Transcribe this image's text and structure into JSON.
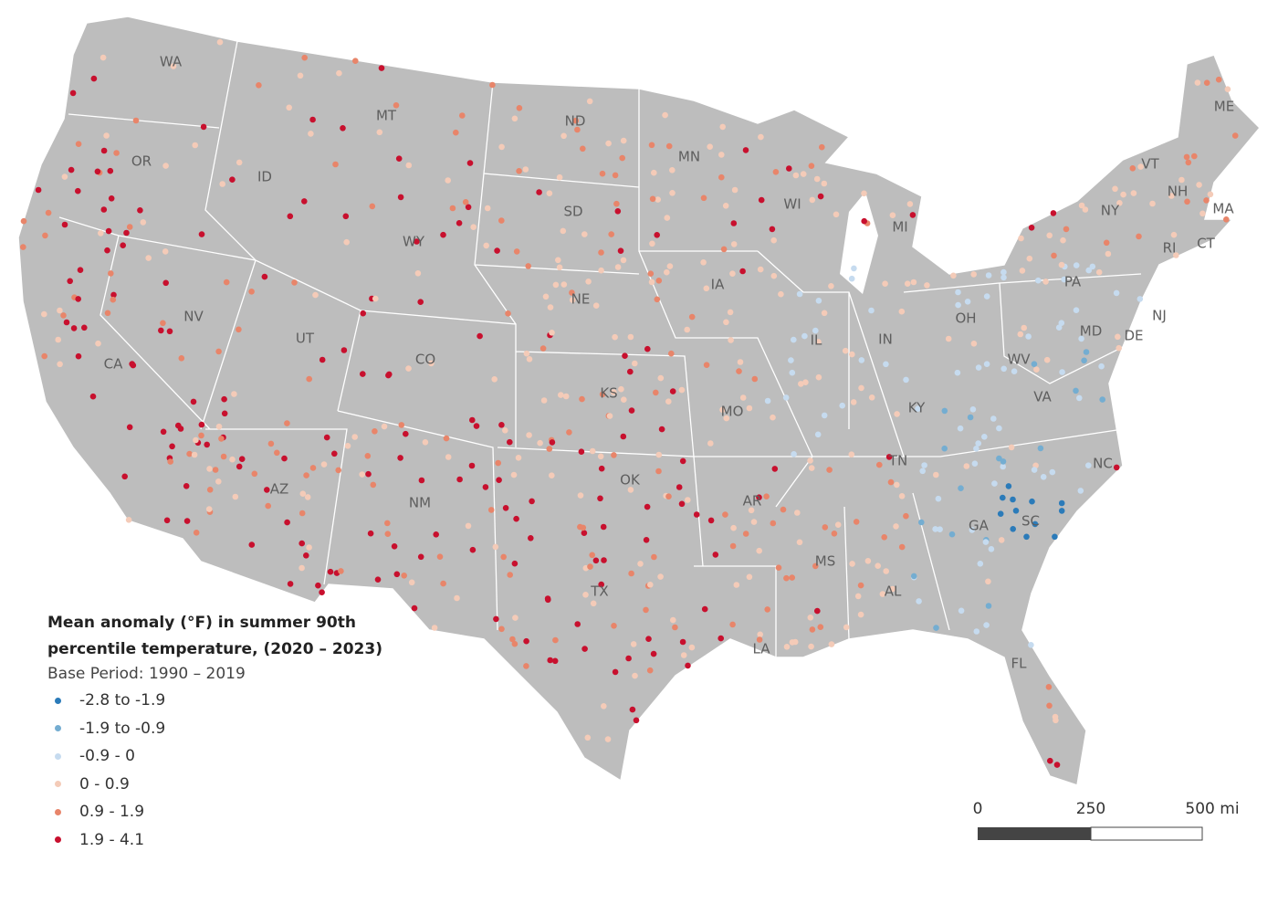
{
  "map": {
    "states": [
      "WA",
      "OR",
      "CA",
      "ID",
      "NV",
      "MT",
      "WY",
      "UT",
      "AZ",
      "CO",
      "NM",
      "ND",
      "SD",
      "NE",
      "KS",
      "OK",
      "TX",
      "MN",
      "IA",
      "MO",
      "AR",
      "LA",
      "WI",
      "IL",
      "MS",
      "MI",
      "IN",
      "KY",
      "TN",
      "AL",
      "OH",
      "GA",
      "FL",
      "WV",
      "VA",
      "NC",
      "SC",
      "PA",
      "NY",
      "MD",
      "DE",
      "NJ",
      "VT",
      "NH",
      "ME",
      "MA",
      "CT",
      "RI"
    ],
    "legend": {
      "title": "Mean anomaly (°F) in summer 90th percentile temperature,  (2020 – 2023)",
      "subtitle": "Base Period: 1990 – 2019",
      "items": [
        {
          "label": "-2.8 to -1.9",
          "color": "#2b7bb9"
        },
        {
          "label": "-1.9 to -0.9",
          "color": "#74add1"
        },
        {
          "label": "-0.9 - 0",
          "color": "#c6dbef"
        },
        {
          "label": "0 - 0.9",
          "color": "#f4cbb8"
        },
        {
          "label": "0.9 - 1.9",
          "color": "#e8856a"
        },
        {
          "label": "1.9 - 4.1",
          "color": "#c8102e"
        }
      ]
    },
    "scale": {
      "labels": [
        "0",
        "250",
        "500 mi"
      ]
    }
  }
}
